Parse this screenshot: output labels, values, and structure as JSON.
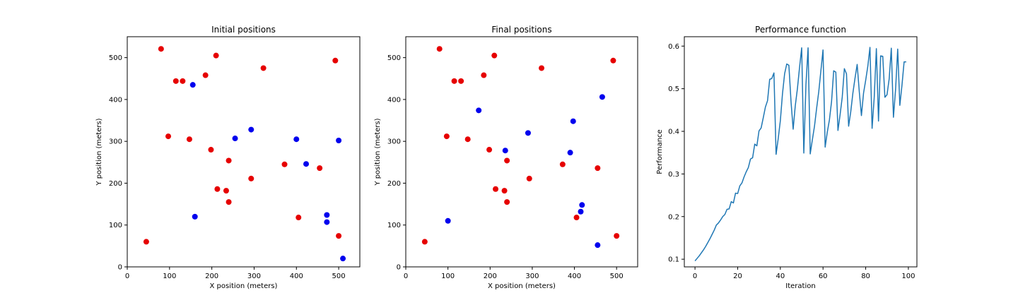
{
  "chart_data": [
    {
      "type": "scatter",
      "title": "Initial positions",
      "xlabel": "X position (meters)",
      "ylabel": "Y position (meters)",
      "xlim": [
        0,
        550
      ],
      "ylim": [
        0,
        550
      ],
      "xticks": [
        0,
        100,
        200,
        300,
        400,
        500
      ],
      "yticks": [
        0,
        100,
        200,
        300,
        400,
        500
      ],
      "grid": false,
      "series": [
        {
          "color": "#e60000",
          "points": [
            [
              45,
              60
            ],
            [
              80,
              521
            ],
            [
              97,
              312
            ],
            [
              115,
              444
            ],
            [
              131,
              444
            ],
            [
              147,
              305
            ],
            [
              185,
              458
            ],
            [
              198,
              280
            ],
            [
              210,
              505
            ],
            [
              213,
              186
            ],
            [
              234,
              182
            ],
            [
              240,
              155
            ],
            [
              240,
              254
            ],
            [
              293,
              211
            ],
            [
              322,
              475
            ],
            [
              372,
              245
            ],
            [
              405,
              118
            ],
            [
              455,
              236
            ],
            [
              492,
              493
            ],
            [
              500,
              74
            ]
          ]
        },
        {
          "color": "#0000ee",
          "points": [
            [
              155,
              435
            ],
            [
              160,
              120
            ],
            [
              255,
              307
            ],
            [
              293,
              328
            ],
            [
              400,
              305
            ],
            [
              423,
              246
            ],
            [
              472,
              124
            ],
            [
              472,
              107
            ],
            [
              500,
              302
            ],
            [
              510,
              20
            ]
          ]
        }
      ]
    },
    {
      "type": "scatter",
      "title": "Final positions",
      "xlabel": "X position (meters)",
      "ylabel": "Y position (meters)",
      "xlim": [
        0,
        550
      ],
      "ylim": [
        0,
        550
      ],
      "xticks": [
        0,
        100,
        200,
        300,
        400,
        500
      ],
      "yticks": [
        0,
        100,
        200,
        300,
        400,
        500
      ],
      "grid": false,
      "series": [
        {
          "color": "#e60000",
          "points": [
            [
              45,
              60
            ],
            [
              80,
              521
            ],
            [
              97,
              312
            ],
            [
              115,
              444
            ],
            [
              131,
              444
            ],
            [
              147,
              305
            ],
            [
              185,
              458
            ],
            [
              198,
              280
            ],
            [
              210,
              505
            ],
            [
              213,
              186
            ],
            [
              234,
              182
            ],
            [
              240,
              155
            ],
            [
              240,
              254
            ],
            [
              293,
              211
            ],
            [
              322,
              475
            ],
            [
              372,
              245
            ],
            [
              405,
              118
            ],
            [
              455,
              236
            ],
            [
              492,
              493
            ],
            [
              500,
              74
            ]
          ]
        },
        {
          "color": "#0000ee",
          "points": [
            [
              100,
              110
            ],
            [
              173,
              374
            ],
            [
              236,
              278
            ],
            [
              290,
              320
            ],
            [
              390,
              273
            ],
            [
              397,
              348
            ],
            [
              415,
              132
            ],
            [
              418,
              148
            ],
            [
              455,
              52
            ],
            [
              466,
              406
            ]
          ]
        }
      ]
    },
    {
      "type": "line",
      "title": "Performance function",
      "xlabel": "Iteration",
      "ylabel": "Performance",
      "xlim": [
        -5,
        104
      ],
      "ylim": [
        0.082,
        0.622
      ],
      "xticks": [
        0,
        20,
        40,
        60,
        80,
        100
      ],
      "yticks": [
        0.1,
        0.2,
        0.3,
        0.4,
        0.5,
        0.6
      ],
      "grid": false,
      "series": [
        {
          "color": "#1f77b4",
          "x": [
            0,
            1,
            2,
            3,
            4,
            5,
            6,
            7,
            8,
            9,
            10,
            11,
            12,
            13,
            14,
            15,
            16,
            17,
            18,
            19,
            20,
            21,
            22,
            23,
            24,
            25,
            26,
            27,
            28,
            29,
            30,
            31,
            32,
            33,
            34,
            35,
            36,
            37,
            38,
            39,
            40,
            41,
            42,
            43,
            44,
            45,
            46,
            47,
            48,
            49,
            50,
            51,
            52,
            53,
            54,
            55,
            56,
            57,
            58,
            59,
            60,
            61,
            62,
            63,
            64,
            65,
            66,
            67,
            68,
            69,
            70,
            71,
            72,
            73,
            74,
            75,
            76,
            77,
            78,
            79,
            80,
            81,
            82,
            83,
            84,
            85,
            86,
            87,
            88,
            89,
            90,
            91,
            92,
            93,
            94,
            95,
            96,
            97,
            98,
            99
          ],
          "y": [
            0.096,
            0.102,
            0.108,
            0.115,
            0.122,
            0.13,
            0.139,
            0.148,
            0.158,
            0.168,
            0.18,
            0.185,
            0.192,
            0.2,
            0.205,
            0.217,
            0.218,
            0.235,
            0.232,
            0.255,
            0.254,
            0.272,
            0.279,
            0.293,
            0.305,
            0.315,
            0.335,
            0.338,
            0.37,
            0.366,
            0.401,
            0.408,
            0.432,
            0.457,
            0.472,
            0.522,
            0.524,
            0.537,
            0.346,
            0.383,
            0.425,
            0.488,
            0.535,
            0.558,
            0.555,
            0.47,
            0.405,
            0.46,
            0.5,
            0.55,
            0.596,
            0.349,
            0.51,
            0.596,
            0.347,
            0.38,
            0.412,
            0.454,
            0.493,
            0.542,
            0.591,
            0.363,
            0.398,
            0.427,
            0.47,
            0.542,
            0.539,
            0.402,
            0.439,
            0.48,
            0.547,
            0.535,
            0.412,
            0.446,
            0.49,
            0.525,
            0.557,
            0.493,
            0.437,
            0.49,
            0.52,
            0.553,
            0.597,
            0.407,
            0.48,
            0.594,
            0.424,
            0.577,
            0.576,
            0.48,
            0.486,
            0.523,
            0.595,
            0.433,
            0.498,
            0.593,
            0.461,
            0.508,
            0.563,
            0.563
          ]
        }
      ]
    }
  ]
}
